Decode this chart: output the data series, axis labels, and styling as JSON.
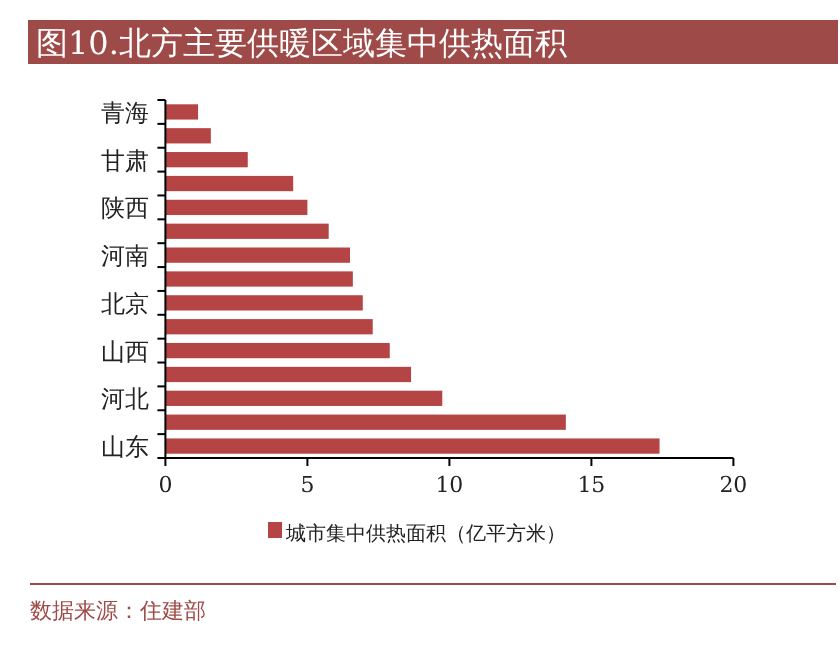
{
  "chart_data": {
    "type": "bar",
    "orientation": "horizontal",
    "title": "图10.北方主要供暖区域集中供热面积",
    "categories": [
      "青海",
      null,
      "甘肃",
      null,
      "陕西",
      null,
      "河南",
      null,
      "北京",
      null,
      "山西",
      null,
      "河北",
      null,
      "山东"
    ],
    "series": [
      {
        "name": "城市集中供热面积（亿平方米）",
        "color": "#b54545",
        "values": [
          1.15,
          1.6,
          2.9,
          4.5,
          5.0,
          5.75,
          6.5,
          6.6,
          6.95,
          7.3,
          7.9,
          8.65,
          9.75,
          14.1,
          17.4
        ]
      }
    ],
    "xlim": [
      0,
      20
    ],
    "xticks": [
      0,
      5,
      10,
      15,
      20
    ],
    "legend": "bottom",
    "annotations": [
      "数据来源：住建部"
    ]
  }
}
